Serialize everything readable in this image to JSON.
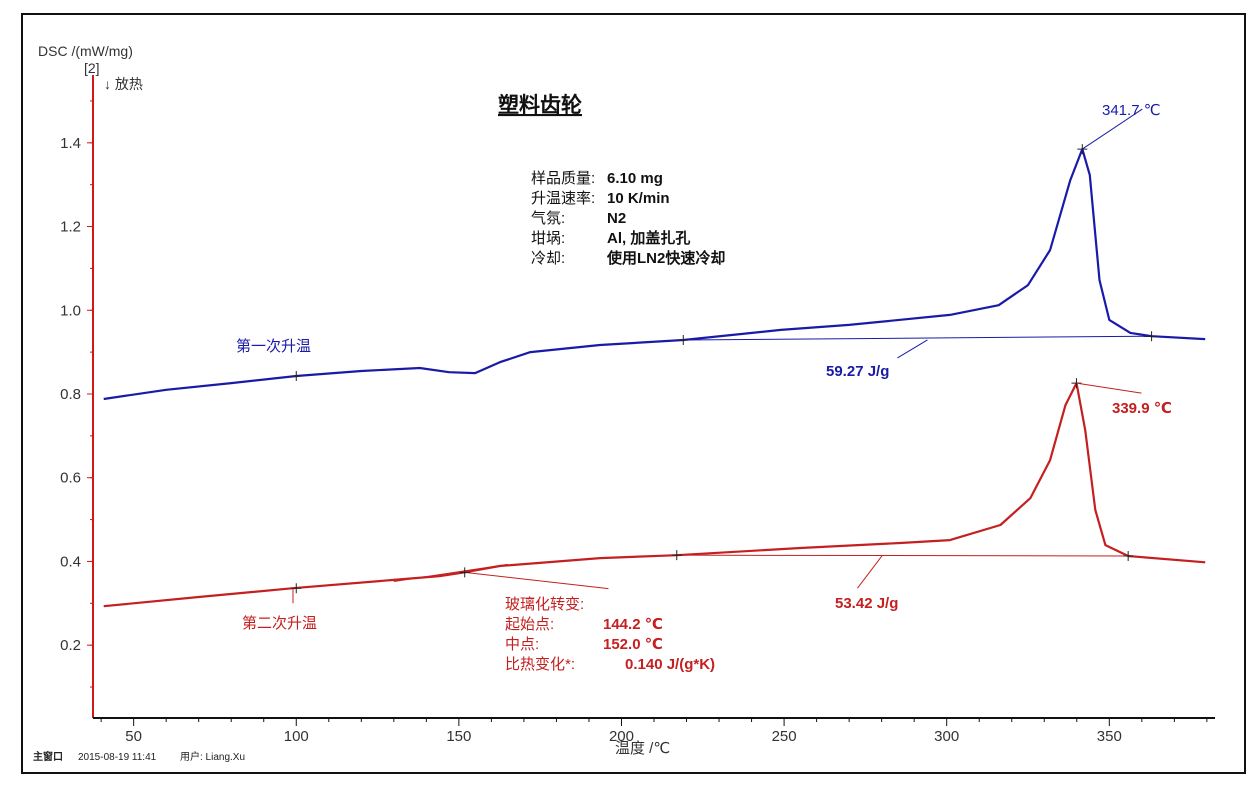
{
  "chart_data": {
    "type": "line",
    "title": "塑料齿轮",
    "ylabel": "DSC /(mW/mg)",
    "ylabel_sub": "[2]",
    "exo_label": "↓ 放热",
    "xlabel": "温度 /℃",
    "xlim": [
      37.5,
      382.5
    ],
    "ylim": [
      0.026,
      1.562
    ],
    "xticks": [
      50,
      100,
      150,
      200,
      250,
      300,
      350
    ],
    "yticks": [
      0.2,
      0.4,
      0.6,
      0.8,
      1.0,
      1.2,
      1.4
    ],
    "ytick_labels": [
      "0.2",
      "0.4",
      "0.6",
      "0.8",
      "1.0",
      "1.2",
      "1.4"
    ],
    "info": [
      {
        "label": "样品质量:",
        "value": "6.10 mg"
      },
      {
        "label": "升温速率:",
        "value": "10 K/min"
      },
      {
        "label": "气氛:",
        "value": "N2"
      },
      {
        "label": "坩埚:",
        "value": "Al, 加盖扎孔"
      },
      {
        "label": "冷却:",
        "value": "使用LN2快速冷却"
      }
    ],
    "series": [
      {
        "name": "第一次升温",
        "color": "#1a1aa8",
        "x": [
          40.8,
          60,
          80,
          100,
          120,
          138,
          147,
          155,
          162.6,
          172,
          193.4,
          219,
          249,
          270,
          301,
          316,
          325,
          331.8,
          338,
          341.7,
          344,
          347,
          350,
          356.5,
          363,
          379.5
        ],
        "y": [
          0.788,
          0.81,
          0.826,
          0.843,
          0.855,
          0.862,
          0.852,
          0.85,
          0.876,
          0.9,
          0.917,
          0.929,
          0.953,
          0.965,
          0.989,
          1.012,
          1.06,
          1.144,
          1.311,
          1.385,
          1.323,
          1.072,
          0.977,
          0.946,
          0.938,
          0.931
        ],
        "peak_label": "341.7 ℃",
        "peak": [
          341.7,
          1.385
        ],
        "enthalpy_label": "59.27 J/g",
        "baseline": [
          [
            219,
            0.929
          ],
          [
            363,
            0.938
          ]
        ]
      },
      {
        "name": "第二次升温",
        "color": "#c42020",
        "x": [
          40.8,
          70,
          99,
          130,
          144,
          151.8,
          162.6,
          193.4,
          217,
          255,
          285.7,
          301,
          316.5,
          325.7,
          331.8,
          336.5,
          339.9,
          342.6,
          345.7,
          348.8,
          355.8,
          379.5
        ],
        "y": [
          0.293,
          0.315,
          0.336,
          0.356,
          0.365,
          0.374,
          0.389,
          0.408,
          0.415,
          0.432,
          0.444,
          0.451,
          0.487,
          0.551,
          0.642,
          0.773,
          0.826,
          0.714,
          0.523,
          0.439,
          0.413,
          0.398
        ],
        "peak_label": "339.9 ℃",
        "peak": [
          339.9,
          0.826
        ],
        "enthalpy_label": "53.42 J/g",
        "baseline": [
          [
            217,
            0.415
          ],
          [
            355.8,
            0.413
          ]
        ]
      }
    ],
    "glass_transition": {
      "title": "玻璃化转变:",
      "onset_label": "起始点:",
      "onset_value": "144.2 ℃",
      "mid_label": "中点:",
      "mid_value": "152.0 ℃",
      "cp_label": "比热变化*:",
      "cp_value": "0.140 J/(g*K)"
    }
  },
  "footer": {
    "window": "主窗口",
    "datetime": "2015-08-19 11:41",
    "user": "用户: Liang.Xu"
  }
}
